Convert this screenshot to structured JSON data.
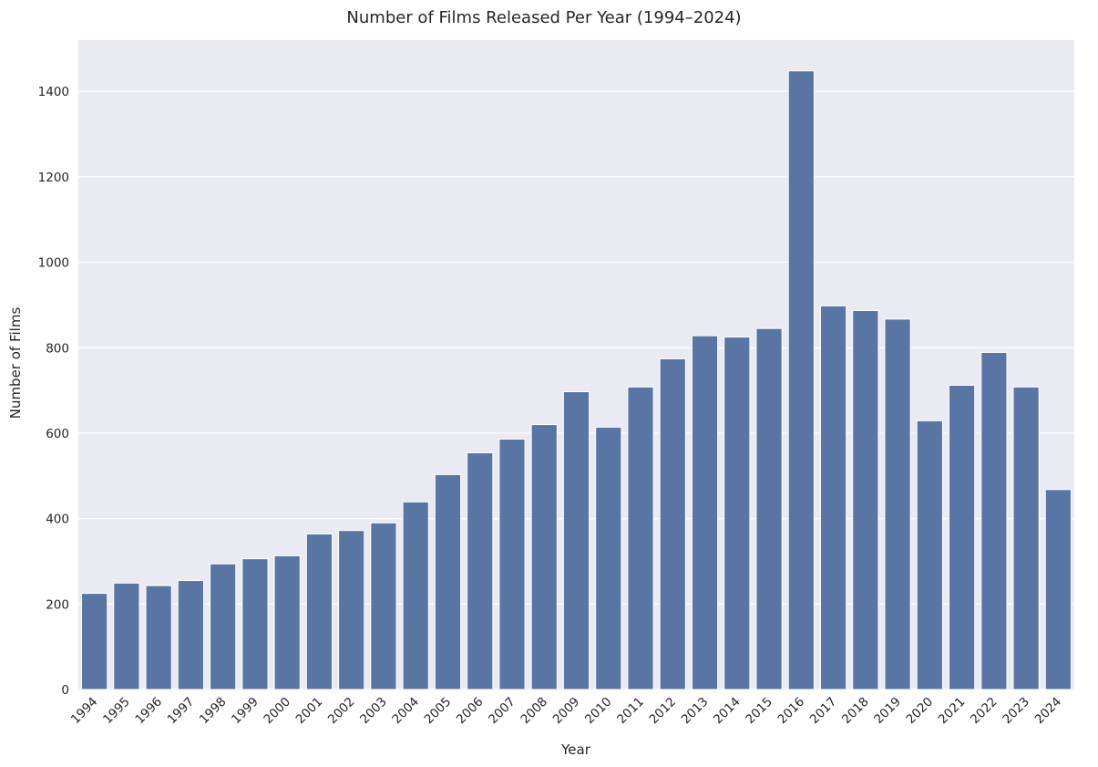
{
  "chart_data": {
    "type": "bar",
    "title": "Number of Films Released Per Year (1994–2024)",
    "xlabel": "Year",
    "ylabel": "Number of Films",
    "categories": [
      "1994",
      "1995",
      "1996",
      "1997",
      "1998",
      "1999",
      "2000",
      "2001",
      "2002",
      "2003",
      "2004",
      "2005",
      "2006",
      "2007",
      "2008",
      "2009",
      "2010",
      "2011",
      "2012",
      "2013",
      "2014",
      "2015",
      "2016",
      "2017",
      "2018",
      "2019",
      "2020",
      "2021",
      "2022",
      "2023",
      "2024"
    ],
    "values": [
      225,
      249,
      243,
      255,
      294,
      306,
      313,
      364,
      372,
      390,
      439,
      503,
      554,
      586,
      620,
      697,
      614,
      708,
      774,
      828,
      825,
      845,
      1448,
      898,
      887,
      867,
      629,
      712,
      789,
      708,
      468
    ],
    "ylim": [
      0,
      1520
    ],
    "yticks": [
      0,
      200,
      400,
      600,
      800,
      1000,
      1200,
      1400
    ],
    "grid": true,
    "colors": {
      "bar": "#5975a4",
      "plot_background": "#eaeaf2",
      "grid": "#ffffff",
      "text": "#262626"
    }
  }
}
